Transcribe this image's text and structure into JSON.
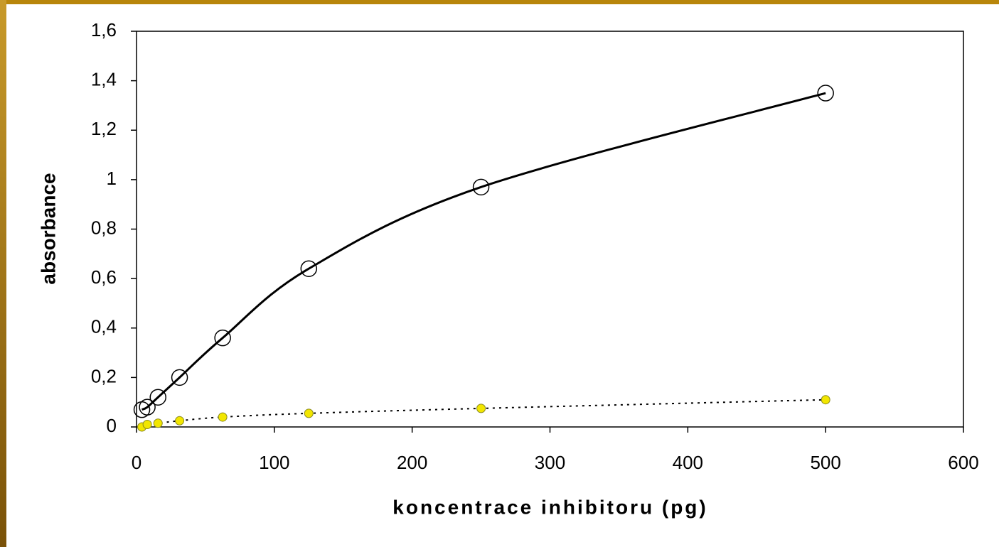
{
  "chart_data": {
    "type": "scatter",
    "xlabel": "koncentrace inhibitoru (pg)",
    "ylabel": "absorbance",
    "xlim": [
      0,
      600
    ],
    "xticks": [
      0,
      100,
      200,
      300,
      400,
      500,
      600
    ],
    "ylim": [
      0,
      1.6
    ],
    "yticks": [
      0,
      {
        "value": 0.2,
        "label": "0,2"
      },
      {
        "value": 0.4,
        "label": "0,4"
      },
      {
        "value": 0.6,
        "label": "0,6"
      },
      {
        "value": 0.8,
        "label": "0,8"
      },
      1,
      {
        "value": 1.2,
        "label": "1,2"
      },
      {
        "value": 1.4,
        "label": "1,4"
      },
      {
        "value": 1.6,
        "label": "1,6"
      }
    ],
    "series": [
      {
        "color": "#000000",
        "marker": "open-circle",
        "line": "solid",
        "x": [
          3.9,
          7.8,
          15.6,
          31.25,
          62.5,
          125,
          250,
          500
        ],
        "values": [
          0.07,
          0.08,
          0.12,
          0.2,
          0.36,
          0.64,
          0.97,
          1.35
        ]
      },
      {
        "color": "#f2e600",
        "marker": "filled-circle",
        "line": "dotted",
        "x": [
          3.9,
          7.8,
          15.6,
          31.25,
          62.5,
          125,
          250,
          500
        ],
        "values": [
          0,
          0.01,
          0.015,
          0.025,
          0.04,
          0.055,
          0.075,
          0.11
        ]
      }
    ]
  }
}
